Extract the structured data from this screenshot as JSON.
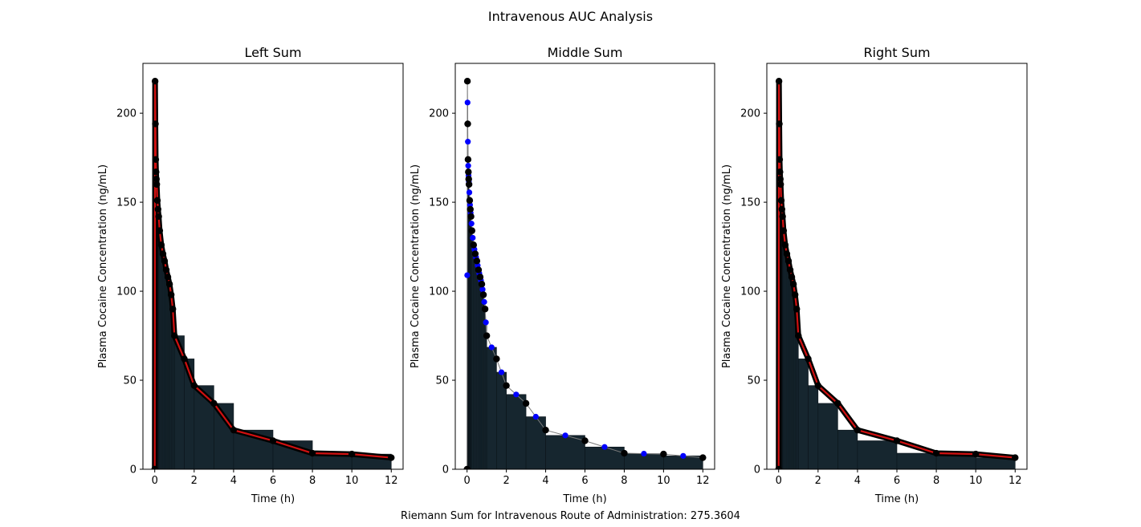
{
  "figure": {
    "title": "Intravenous AUC Analysis",
    "footer": "Riemann Sum for Intravenous Route of Administration: 275.3604"
  },
  "chart_data": [
    {
      "type": "line",
      "title": "Left Sum",
      "xlabel": "Time (h)",
      "ylabel": "Plasma Cocaine Concentration (ng/mL)",
      "xlim": [
        -0.6,
        12.6
      ],
      "ylim": [
        0,
        228
      ],
      "xticks": [
        0,
        2,
        4,
        6,
        8,
        10,
        12
      ],
      "yticks": [
        0,
        50,
        100,
        150,
        200
      ],
      "step_fill": "left",
      "show_fit_line": true,
      "show_midpoints": false,
      "colors": {
        "fill": "#16262f",
        "edge": "#0b141a",
        "points": "#000000",
        "fit": "#d01010",
        "mid": "#0000ff"
      },
      "series": [
        {
          "x": [
            0,
            0.0167,
            0.0333,
            0.05,
            0.0667,
            0.0833,
            0.1,
            0.1333,
            0.1667,
            0.2,
            0.25,
            0.3333,
            0.4167,
            0.5,
            0.5833,
            0.6667,
            0.75,
            0.8333,
            0.9167,
            1,
            1.5,
            2,
            3,
            4,
            6,
            8,
            10,
            12
          ],
          "y": [
            0,
            218,
            194,
            174,
            167,
            163,
            160,
            151,
            146,
            142,
            134,
            126,
            121,
            117,
            112,
            108,
            104,
            98,
            90,
            75,
            62,
            47,
            37,
            22,
            16,
            9,
            8.5,
            6.5
          ]
        }
      ]
    },
    {
      "type": "line",
      "title": "Middle Sum",
      "xlabel": "Time (h)",
      "ylabel": "Plasma Cocaine Concentration (ng/mL)",
      "xlim": [
        -0.6,
        12.6
      ],
      "ylim": [
        0,
        228
      ],
      "xticks": [
        0,
        2,
        4,
        6,
        8,
        10,
        12
      ],
      "yticks": [
        0,
        50,
        100,
        150,
        200
      ],
      "step_fill": "middle",
      "show_fit_line": false,
      "show_midpoints": true,
      "colors": {
        "fill": "#16262f",
        "edge": "#0b141a",
        "points": "#000000",
        "fit": "#d01010",
        "mid": "#0000ff"
      },
      "series": [
        {
          "x": [
            0,
            0.0167,
            0.0333,
            0.05,
            0.0667,
            0.0833,
            0.1,
            0.1333,
            0.1667,
            0.2,
            0.25,
            0.3333,
            0.4167,
            0.5,
            0.5833,
            0.6667,
            0.75,
            0.8333,
            0.9167,
            1,
            1.5,
            2,
            3,
            4,
            6,
            8,
            10,
            12
          ],
          "y": [
            0,
            218,
            194,
            174,
            167,
            163,
            160,
            151,
            146,
            142,
            134,
            126,
            121,
            117,
            112,
            108,
            104,
            98,
            90,
            75,
            62,
            47,
            37,
            22,
            16,
            9,
            8.5,
            6.5
          ]
        }
      ]
    },
    {
      "type": "line",
      "title": "Right Sum",
      "xlabel": "Time (h)",
      "ylabel": "Plasma Cocaine Concentration (ng/mL)",
      "xlim": [
        -0.6,
        12.6
      ],
      "ylim": [
        0,
        228
      ],
      "xticks": [
        0,
        2,
        4,
        6,
        8,
        10,
        12
      ],
      "yticks": [
        0,
        50,
        100,
        150,
        200
      ],
      "step_fill": "right",
      "show_fit_line": true,
      "show_midpoints": false,
      "colors": {
        "fill": "#16262f",
        "edge": "#0b141a",
        "points": "#000000",
        "fit": "#d01010",
        "mid": "#0000ff"
      },
      "series": [
        {
          "x": [
            0,
            0.0167,
            0.0333,
            0.05,
            0.0667,
            0.0833,
            0.1,
            0.1333,
            0.1667,
            0.2,
            0.25,
            0.3333,
            0.4167,
            0.5,
            0.5833,
            0.6667,
            0.75,
            0.8333,
            0.9167,
            1,
            1.5,
            2,
            3,
            4,
            6,
            8,
            10,
            12
          ],
          "y": [
            0,
            218,
            194,
            174,
            167,
            163,
            160,
            151,
            146,
            142,
            134,
            126,
            121,
            117,
            112,
            108,
            104,
            98,
            90,
            75,
            62,
            47,
            37,
            22,
            16,
            9,
            8.5,
            6.5
          ]
        }
      ]
    }
  ]
}
